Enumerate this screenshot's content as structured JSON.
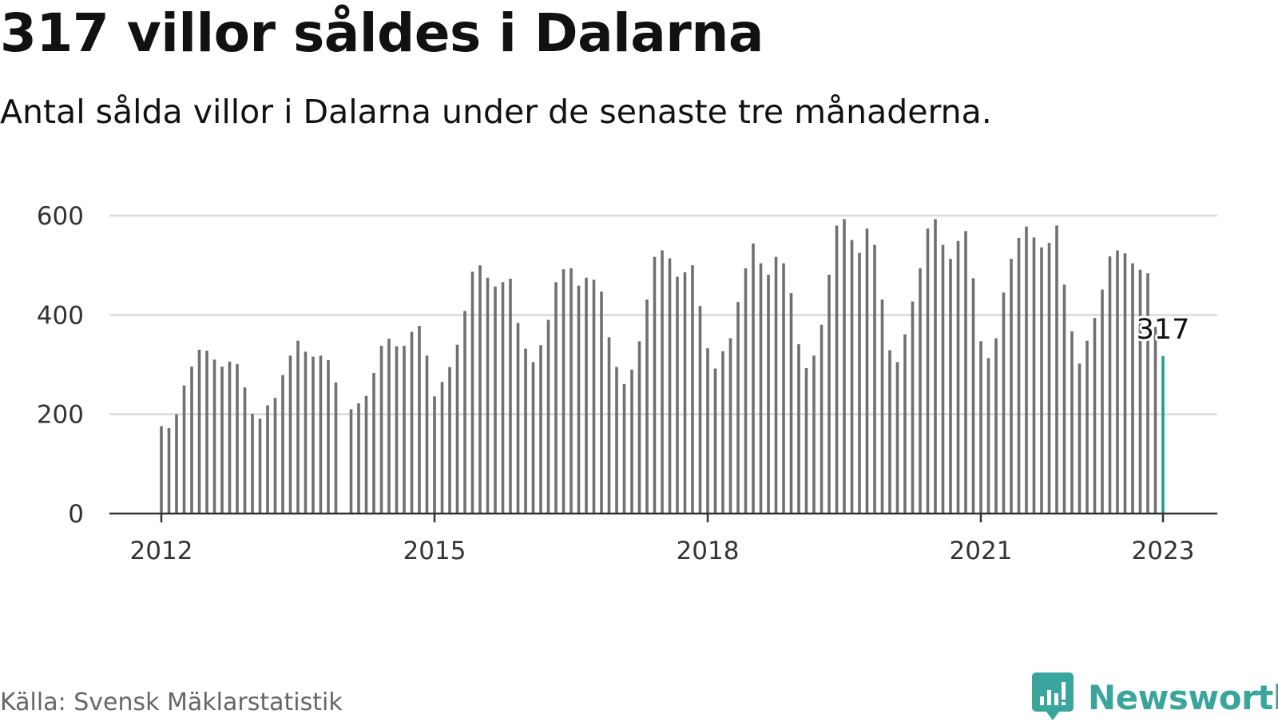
{
  "header": {
    "title": "317 villor såldes i Dalarna",
    "subtitle": "Antal sålda villor i Dalarna under de senaste tre månaderna."
  },
  "footer": {
    "source": "Källa: Svensk Mäklarstatistik",
    "brand": "Newsworthy",
    "brand_icon": "bar-chart-speech-bubble-icon"
  },
  "colors": {
    "bar": "#6f6f74",
    "highlight": "#1a9e96",
    "grid": "#d9d9d9",
    "axis": "#333333",
    "brand": "#3aa59d"
  },
  "chart_data": {
    "type": "bar",
    "title": "317 villor såldes i Dalarna",
    "subtitle": "Antal sålda villor i Dalarna under de senaste tre månaderna.",
    "xlabel": "",
    "ylabel": "",
    "ylim": [
      0,
      600
    ],
    "y_ticks": [
      0,
      200,
      400,
      600
    ],
    "x_ticks": [
      "2012",
      "2015",
      "2018",
      "2021",
      "2023"
    ],
    "grid": true,
    "x_start": "2012-01",
    "x_end": "2023-01",
    "values": [
      176,
      172,
      200,
      258,
      296,
      330,
      328,
      310,
      296,
      306,
      301,
      254,
      201,
      191,
      218,
      233,
      279,
      318,
      348,
      326,
      316,
      318,
      309,
      264,
      null,
      210,
      222,
      237,
      283,
      338,
      352,
      337,
      338,
      366,
      378,
      318,
      236,
      265,
      295,
      340,
      408,
      487,
      500,
      475,
      457,
      466,
      473,
      384,
      332,
      305,
      339,
      390,
      466,
      492,
      494,
      459,
      475,
      471,
      447,
      355,
      295,
      261,
      290,
      347,
      431,
      517,
      530,
      514,
      477,
      486,
      500,
      418,
      333,
      292,
      327,
      353,
      426,
      494,
      544,
      504,
      481,
      517,
      504,
      444,
      341,
      293,
      318,
      380,
      481,
      580,
      593,
      551,
      525,
      574,
      541,
      431,
      329,
      305,
      361,
      427,
      494,
      574,
      593,
      541,
      513,
      549,
      569,
      474,
      347,
      313,
      353,
      445,
      513,
      555,
      578,
      556,
      536,
      545,
      580,
      461,
      367,
      302,
      348,
      394,
      451,
      518,
      530,
      524,
      504,
      491,
      484,
      376,
      317
    ],
    "highlight": {
      "x": "2023-01",
      "value": 317,
      "label": "317"
    }
  }
}
